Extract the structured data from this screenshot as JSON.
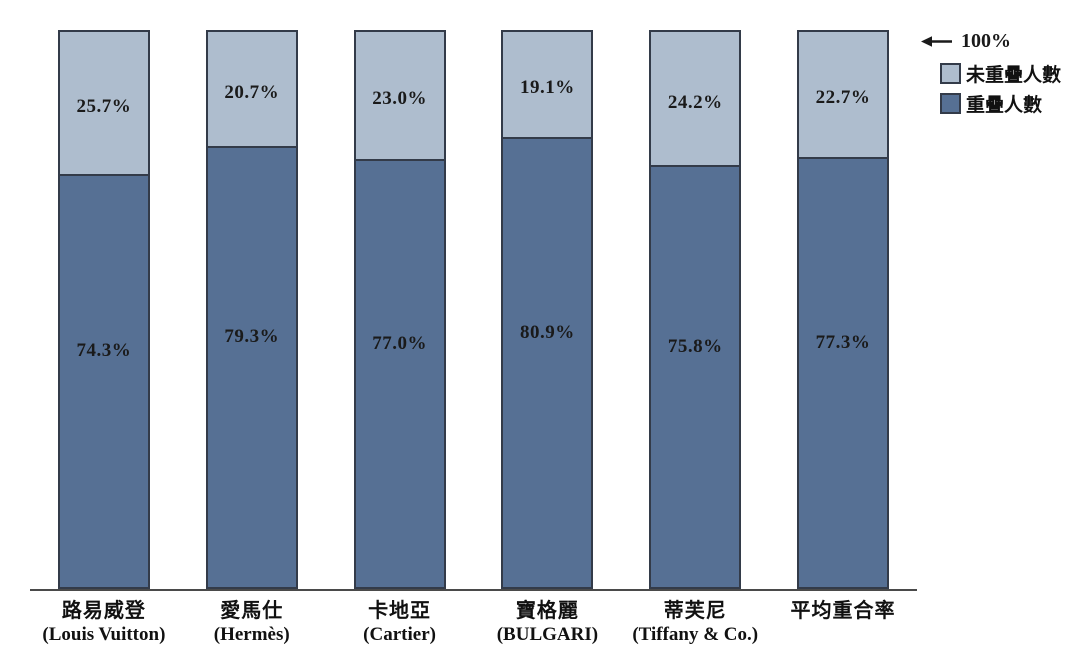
{
  "chart_data": {
    "type": "bar",
    "stacked": true,
    "title": "",
    "xlabel": "",
    "ylabel": "",
    "ylim": [
      0,
      100
    ],
    "unit": "%",
    "grid": false,
    "legend_position": "top-right",
    "axis_max_annotation": "100%",
    "categories": [
      "路易威登 (Louis Vuitton)",
      "愛馬仕 (Hermès)",
      "卡地亞 (Cartier)",
      "寶格麗 (BULGARI)",
      "蒂芙尼 (Tiffany & Co.)",
      "平均重合率"
    ],
    "series": [
      {
        "name": "重疊人數",
        "color": "#567094",
        "values": [
          74.3,
          79.3,
          77.0,
          80.9,
          75.8,
          77.3
        ]
      },
      {
        "name": "未重疊人數",
        "color": "#AEBDCE",
        "values": [
          25.7,
          20.7,
          23.0,
          19.1,
          24.2,
          22.7
        ]
      }
    ]
  },
  "bars": [
    {
      "zh": "路易威登",
      "en": "(Louis Vuitton)",
      "non_overlap": 25.7,
      "overlap": 74.3,
      "non_overlap_label": "25.7%",
      "overlap_label": "74.3%"
    },
    {
      "zh": "愛馬仕",
      "en": "(Hermès)",
      "non_overlap": 20.7,
      "overlap": 79.3,
      "non_overlap_label": "20.7%",
      "overlap_label": "79.3%"
    },
    {
      "zh": "卡地亞",
      "en": "(Cartier)",
      "non_overlap": 23.0,
      "overlap": 77.0,
      "non_overlap_label": "23.0%",
      "overlap_label": "77.0%"
    },
    {
      "zh": "寶格麗",
      "en": "(BULGARI)",
      "non_overlap": 19.1,
      "overlap": 80.9,
      "non_overlap_label": "19.1%",
      "overlap_label": "80.9%"
    },
    {
      "zh": "蒂芙尼",
      "en": "(Tiffany & Co.)",
      "non_overlap": 24.2,
      "overlap": 75.8,
      "non_overlap_label": "24.2%",
      "overlap_label": "75.8%"
    },
    {
      "zh": "平均重合率",
      "en": "",
      "non_overlap": 22.7,
      "overlap": 77.3,
      "non_overlap_label": "22.7%",
      "overlap_label": "77.3%"
    }
  ],
  "legend": {
    "max_label": "100%",
    "items": [
      {
        "label": "未重疊人數",
        "color": "#AEBDCE"
      },
      {
        "label": "重疊人數",
        "color": "#567094"
      }
    ]
  },
  "colors": {
    "non_overlap_fill": "#AEBDCE",
    "overlap_fill": "#567094",
    "bar_border": "#333b49",
    "axis_line": "#4a4a4a",
    "text": "#111111"
  }
}
